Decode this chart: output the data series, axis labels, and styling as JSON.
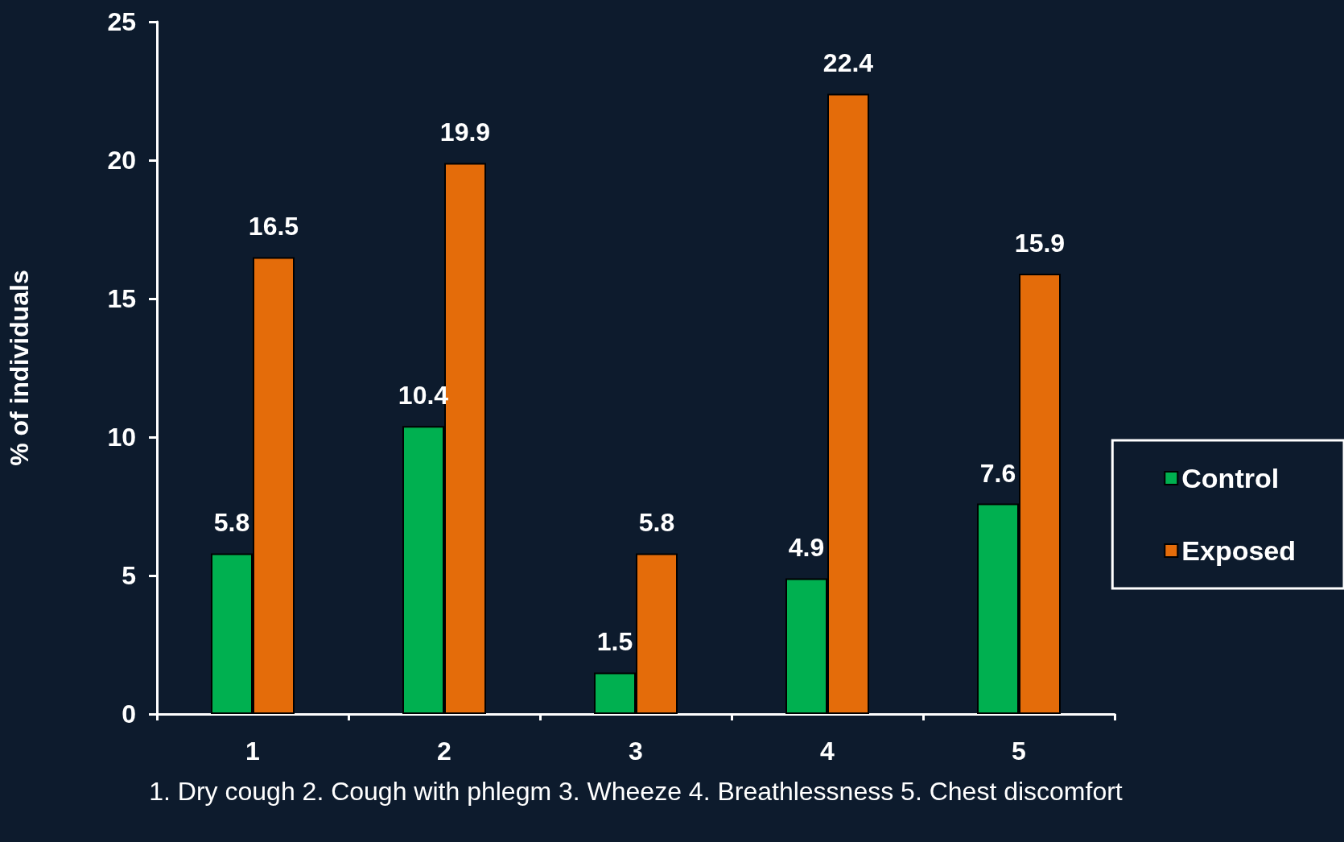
{
  "chart_data": {
    "type": "bar",
    "categories": [
      "1",
      "2",
      "3",
      "4",
      "5"
    ],
    "series": [
      {
        "name": "Control",
        "color": "#00b050",
        "values": [
          5.8,
          10.4,
          1.5,
          4.9,
          7.6
        ]
      },
      {
        "name": "Exposed",
        "color": "#e46c0a",
        "values": [
          16.5,
          19.9,
          5.8,
          22.4,
          15.9
        ]
      }
    ],
    "xlabel": "1. Dry cough 2. Cough with phlegm 3. Wheeze 4. Breathlessness 5. Chest discomfort",
    "ylabel": "% of individuals",
    "ylim": [
      0,
      25
    ],
    "yticks": [
      0,
      5,
      10,
      15,
      20,
      25
    ],
    "data_labels": true,
    "legend": "right",
    "grid": false
  }
}
